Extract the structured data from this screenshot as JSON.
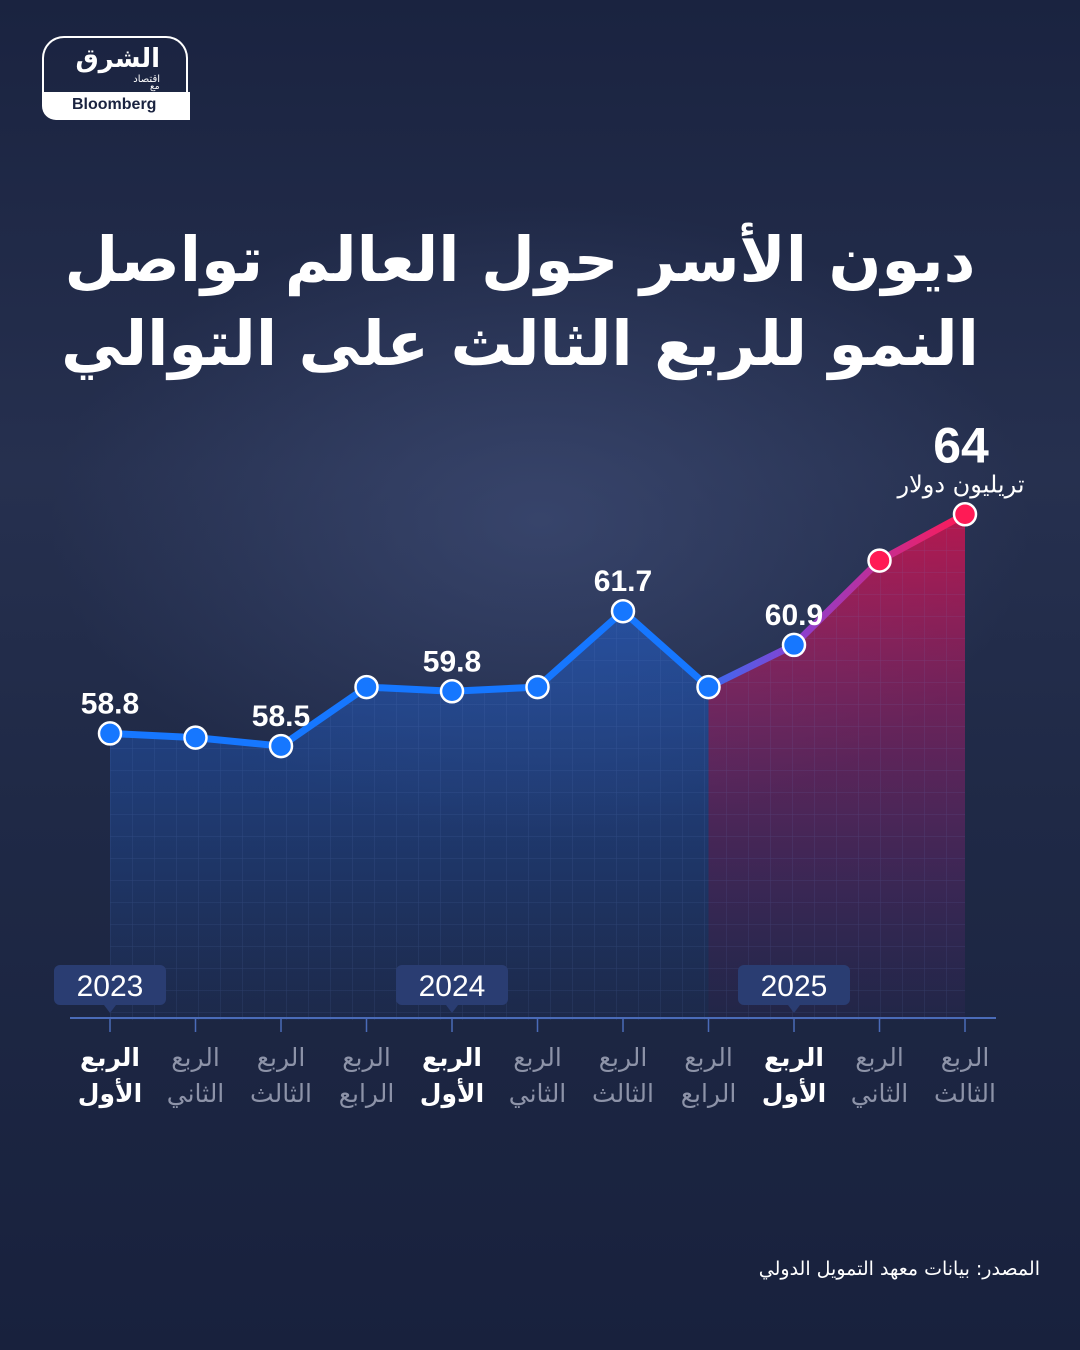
{
  "brand": {
    "logo_arabic": "الشرق",
    "logo_arabic_sub": "اقتصاد",
    "logo_with": "مع",
    "logo_english": "Bloomberg"
  },
  "title_line1": "ديون الأسر حول العالم تواصل",
  "title_line2": "النمو للربع الثالث على التوالي",
  "source": "المصدر: بيانات معهد التمويل الدولي",
  "chart_data": {
    "type": "line",
    "categories": [
      "2023 Q1",
      "2023 Q2",
      "2023 Q3",
      "2023 Q4",
      "2024 Q1",
      "2024 Q2",
      "2024 Q3",
      "2024 Q4",
      "2025 Q1",
      "2025 Q2",
      "2025 Q3"
    ],
    "values": [
      58.8,
      58.7,
      58.5,
      59.9,
      59.8,
      59.9,
      61.7,
      59.9,
      60.9,
      62.9,
      64.0
    ],
    "data_labels": [
      {
        "index": 0,
        "text": "58.8"
      },
      {
        "index": 2,
        "text": "58.5"
      },
      {
        "index": 4,
        "text": "59.8"
      },
      {
        "index": 6,
        "text": "61.7"
      },
      {
        "index": 8,
        "text": "60.9"
      },
      {
        "index": 10,
        "text": "64"
      }
    ],
    "last_value_unit": "تريليون دولار",
    "tick_labels": [
      {
        "line1": "الربع",
        "line2": "الأول",
        "highlight": true
      },
      {
        "line1": "الربع",
        "line2": "الثاني",
        "highlight": false
      },
      {
        "line1": "الربع",
        "line2": "الثالث",
        "highlight": false
      },
      {
        "line1": "الربع",
        "line2": "الرابع",
        "highlight": false
      },
      {
        "line1": "الربع",
        "line2": "الأول",
        "highlight": true
      },
      {
        "line1": "الربع",
        "line2": "الثاني",
        "highlight": false
      },
      {
        "line1": "الربع",
        "line2": "الثالث",
        "highlight": false
      },
      {
        "line1": "الربع",
        "line2": "الرابع",
        "highlight": false
      },
      {
        "line1": "الربع",
        "line2": "الأول",
        "highlight": true
      },
      {
        "line1": "الربع",
        "line2": "الثاني",
        "highlight": false
      },
      {
        "line1": "الربع",
        "line2": "الثالث",
        "highlight": false
      }
    ],
    "year_labels": [
      {
        "index": 0,
        "text": "2023"
      },
      {
        "index": 4,
        "text": "2024"
      },
      {
        "index": 8,
        "text": "2025"
      }
    ],
    "highlight_from_index": 8,
    "ylim": [
      52,
      66
    ],
    "colors": {
      "line_main": "#1677ff",
      "line_highlight": "#ff1a55",
      "line_transition": "#7b4fd6",
      "tick_highlight": "#ffffff",
      "tick_muted": "#8d93a8",
      "year_box": "#2a3d72"
    }
  }
}
